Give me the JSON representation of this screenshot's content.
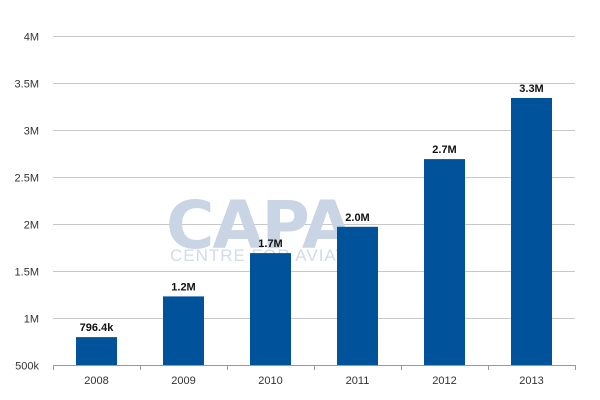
{
  "watermark": {
    "logo_text": "CAPA",
    "tagline": "CENTRE FOR AVIATION"
  },
  "colors": {
    "bar": "#00529b",
    "grid": "#c8c8c8",
    "axis": "#999999"
  },
  "chart_data": {
    "type": "bar",
    "title": "",
    "xlabel": "",
    "ylabel": "",
    "categories": [
      "2008",
      "2009",
      "2010",
      "2011",
      "2012",
      "2013"
    ],
    "values": [
      796400,
      1230000,
      1690000,
      1970000,
      2690000,
      3340000
    ],
    "data_labels": [
      "796.4k",
      "1.2M",
      "1.7M",
      "2.0M",
      "2.7M",
      "3.3M"
    ],
    "ylim": [
      500000,
      4000000
    ],
    "yticks": [
      500000,
      1000000,
      1500000,
      2000000,
      2500000,
      3000000,
      3500000,
      4000000
    ],
    "ytick_labels": [
      "500k",
      "1M",
      "1.5M",
      "2M",
      "2.5M",
      "3M",
      "3.5M",
      "4M"
    ],
    "grid": true,
    "legend": "none"
  }
}
